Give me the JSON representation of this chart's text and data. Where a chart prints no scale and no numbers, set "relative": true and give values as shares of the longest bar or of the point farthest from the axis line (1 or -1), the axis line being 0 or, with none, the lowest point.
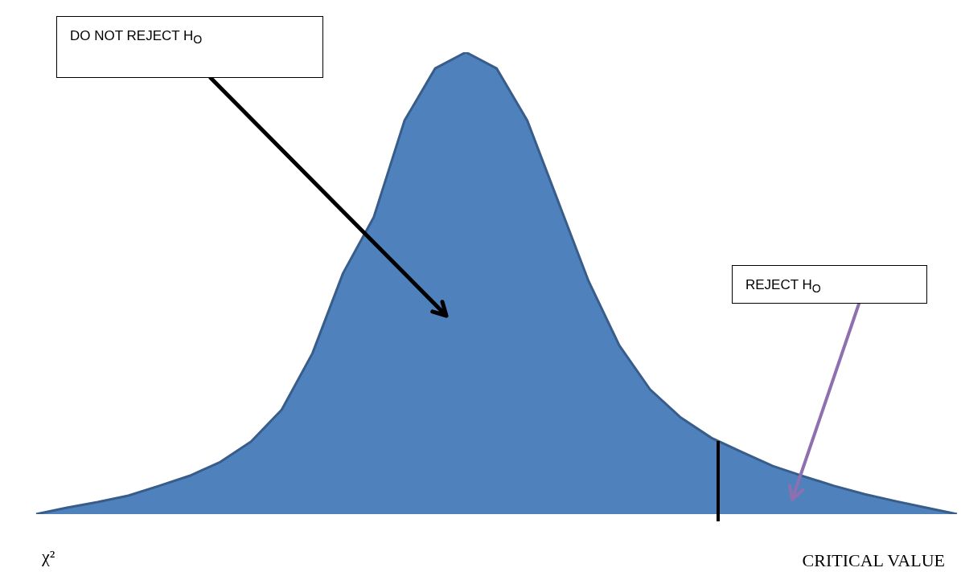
{
  "chart_data": {
    "type": "area",
    "relative": true,
    "tick_labels": false,
    "grid": false,
    "legend": false,
    "marker": "none",
    "xlabel": "χ²",
    "categories": [
      null,
      null,
      null,
      null,
      null,
      null,
      null,
      null,
      null,
      null,
      null,
      null,
      null,
      null,
      null,
      null,
      null,
      null,
      null,
      null,
      null,
      null,
      null,
      null,
      null,
      null,
      null,
      null,
      null,
      null,
      null
    ],
    "series": [
      {
        "color": "#4f81bd",
        "values": [
          0,
          0.014,
          0.026,
          0.04,
          0.061,
          0.083,
          0.113,
          0.157,
          0.226,
          0.348,
          0.522,
          0.643,
          0.852,
          0.965,
          1,
          0.965,
          0.852,
          0.678,
          0.504,
          0.365,
          0.27,
          0.209,
          0.165,
          0.134,
          0.104,
          0.082,
          0.061,
          0.043,
          0.028,
          0.014,
          0
        ]
      }
    ],
    "annotations": [
      "DO NOT REJECT H$_{O}$",
      "REJECT H$_{O}$",
      "CRITICAL VALUE"
    ]
  }
}
